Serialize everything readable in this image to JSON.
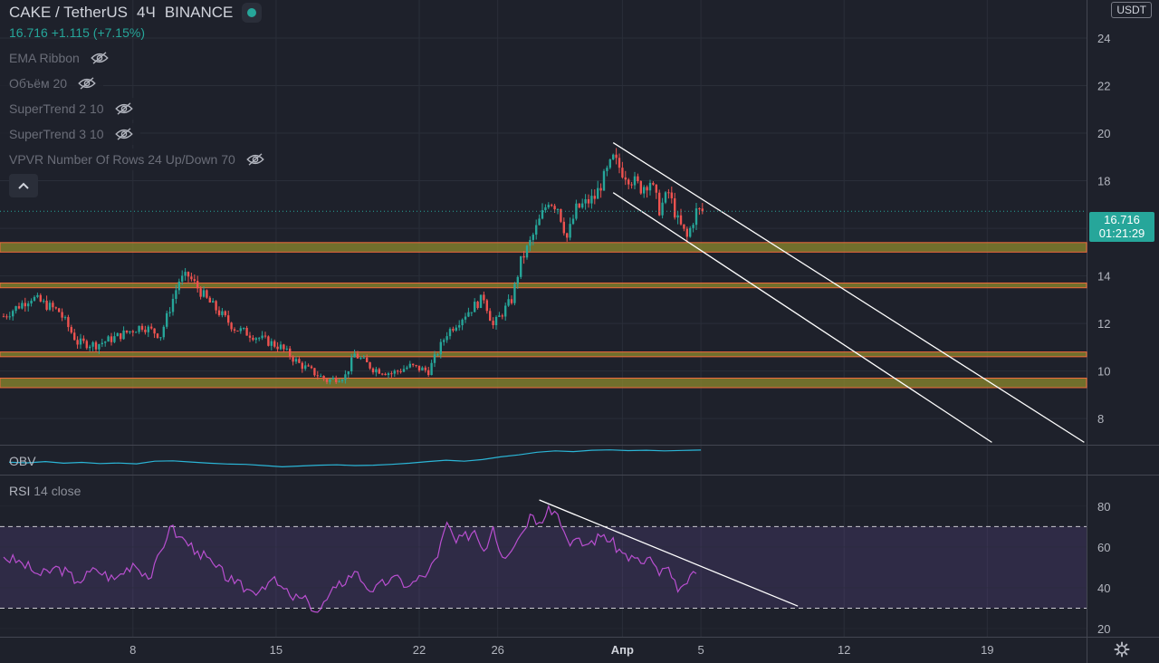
{
  "header": {
    "symbol": "CAKE / TetherUS",
    "interval": "4Ч",
    "exchange": "BINANCE",
    "last_price": "16.716",
    "change": "+1.115",
    "change_pct": "(+7.15%)"
  },
  "indicators": [
    {
      "label": "EMA Ribbon"
    },
    {
      "label": "Объём 20"
    },
    {
      "label": "SuperTrend 2 10"
    },
    {
      "label": "SuperTrend 3 10"
    },
    {
      "label": "VPVR Number Of Rows 24 Up/Down 70"
    }
  ],
  "price_tag": {
    "price": "16.716",
    "countdown": "01:21:29"
  },
  "currency": "USDT",
  "colors": {
    "up": "#26a69a",
    "down": "#ef5350",
    "background": "#1e212b",
    "obv": "#2bb5d6",
    "rsi": "#b94fd0",
    "zone_fill": "#8d8a2e",
    "zone_border": "#f06a3c"
  },
  "chart_data": [
    {
      "type": "candlestick",
      "title": "CAKE / TetherUS 4Ч BINANCE",
      "ylim": [
        6.9,
        25.6
      ],
      "y_ticks": [
        8,
        10,
        12,
        14,
        16,
        18,
        20,
        22,
        24
      ],
      "x_ticks": [
        "8",
        "15",
        "22",
        "26",
        "Апр",
        "5",
        "12",
        "19"
      ],
      "grid": true,
      "anchors": [
        [
          0,
          12.3
        ],
        [
          3,
          13.1
        ],
        [
          6,
          12.5
        ],
        [
          8,
          11.2
        ],
        [
          10,
          11.1
        ],
        [
          12,
          11.4
        ],
        [
          15,
          11.9
        ],
        [
          17,
          11.5
        ],
        [
          19,
          13.8
        ],
        [
          20,
          14.0
        ],
        [
          22,
          13.0
        ],
        [
          25,
          11.8
        ],
        [
          27,
          11.5
        ],
        [
          30,
          11.0
        ],
        [
          32,
          10.3
        ],
        [
          35,
          9.6
        ],
        [
          37,
          9.8
        ],
        [
          38,
          10.7
        ],
        [
          40,
          10.1
        ],
        [
          42,
          9.9
        ],
        [
          44,
          10.2
        ],
        [
          46,
          10.0
        ],
        [
          48,
          11.6
        ],
        [
          50,
          12.4
        ],
        [
          52,
          13.1
        ],
        [
          53,
          11.9
        ],
        [
          55,
          13.0
        ],
        [
          56,
          14.6
        ],
        [
          57,
          15.4
        ],
        [
          59,
          17.2
        ],
        [
          60,
          16.9
        ],
        [
          61,
          15.6
        ],
        [
          62,
          16.8
        ],
        [
          64,
          17.3
        ],
        [
          66,
          18.9
        ],
        [
          67,
          18.4
        ],
        [
          69,
          17.7
        ],
        [
          70,
          18.0
        ],
        [
          71,
          16.8
        ],
        [
          72,
          17.5
        ],
        [
          73,
          16.3
        ],
        [
          74,
          15.6
        ],
        [
          75,
          16.716
        ]
      ],
      "horizontal_zones": [
        {
          "low": 15.0,
          "high": 15.4,
          "style": "filled"
        },
        {
          "low": 13.5,
          "high": 13.7,
          "style": "filled"
        },
        {
          "low": 10.6,
          "high": 10.8,
          "style": "filled"
        },
        {
          "low": 9.3,
          "high": 9.7,
          "style": "filled"
        }
      ],
      "trend_channel": [
        {
          "from": [
            66,
            19.6
          ],
          "to": [
            117,
            7.0
          ]
        },
        {
          "from": [
            66,
            17.5
          ],
          "to": [
            107,
            7.0
          ]
        }
      ]
    },
    {
      "type": "line",
      "title": "OBV",
      "series": [
        {
          "values": [
            0.35,
            0.32,
            0.38,
            0.3,
            0.34,
            0.28,
            0.31,
            0.27,
            0.4,
            0.42,
            0.36,
            0.3,
            0.26,
            0.24,
            0.18,
            0.12,
            0.16,
            0.2,
            0.22,
            0.18,
            0.2,
            0.24,
            0.3,
            0.38,
            0.45,
            0.4,
            0.48,
            0.62,
            0.72,
            0.85,
            0.92,
            0.88,
            0.95,
            0.97,
            0.93,
            0.95,
            0.92,
            0.94,
            0.96
          ]
        }
      ]
    },
    {
      "type": "line",
      "title": "RSI",
      "subtitle": "14 close",
      "ylim": [
        16,
        95
      ],
      "y_ticks": [
        20,
        40,
        60,
        80
      ],
      "bands": [
        30,
        70
      ],
      "anchors": [
        [
          0,
          55
        ],
        [
          2,
          52
        ],
        [
          4,
          46
        ],
        [
          6,
          50
        ],
        [
          8,
          43
        ],
        [
          10,
          49
        ],
        [
          12,
          44
        ],
        [
          14,
          52
        ],
        [
          16,
          45
        ],
        [
          18,
          70
        ],
        [
          19,
          65
        ],
        [
          21,
          58
        ],
        [
          23,
          50
        ],
        [
          25,
          42
        ],
        [
          27,
          38
        ],
        [
          29,
          44
        ],
        [
          31,
          36
        ],
        [
          33,
          33
        ],
        [
          34,
          28
        ],
        [
          36,
          40
        ],
        [
          38,
          48
        ],
        [
          40,
          38
        ],
        [
          42,
          45
        ],
        [
          44,
          41
        ],
        [
          46,
          48
        ],
        [
          47,
          55
        ],
        [
          48,
          72
        ],
        [
          49,
          62
        ],
        [
          51,
          68
        ],
        [
          52,
          58
        ],
        [
          53,
          70
        ],
        [
          54,
          55
        ],
        [
          56,
          66
        ],
        [
          57,
          76
        ],
        [
          58,
          72
        ],
        [
          59,
          80
        ],
        [
          60,
          76
        ],
        [
          61,
          64
        ],
        [
          63,
          61
        ],
        [
          65,
          66
        ],
        [
          67,
          57
        ],
        [
          69,
          52
        ],
        [
          70,
          55
        ],
        [
          71,
          46
        ],
        [
          72,
          50
        ],
        [
          73,
          38
        ],
        [
          74,
          42
        ],
        [
          75,
          47
        ]
      ],
      "trend_line": {
        "from": [
          58,
          83
        ],
        "to": [
          86,
          31
        ]
      }
    }
  ]
}
